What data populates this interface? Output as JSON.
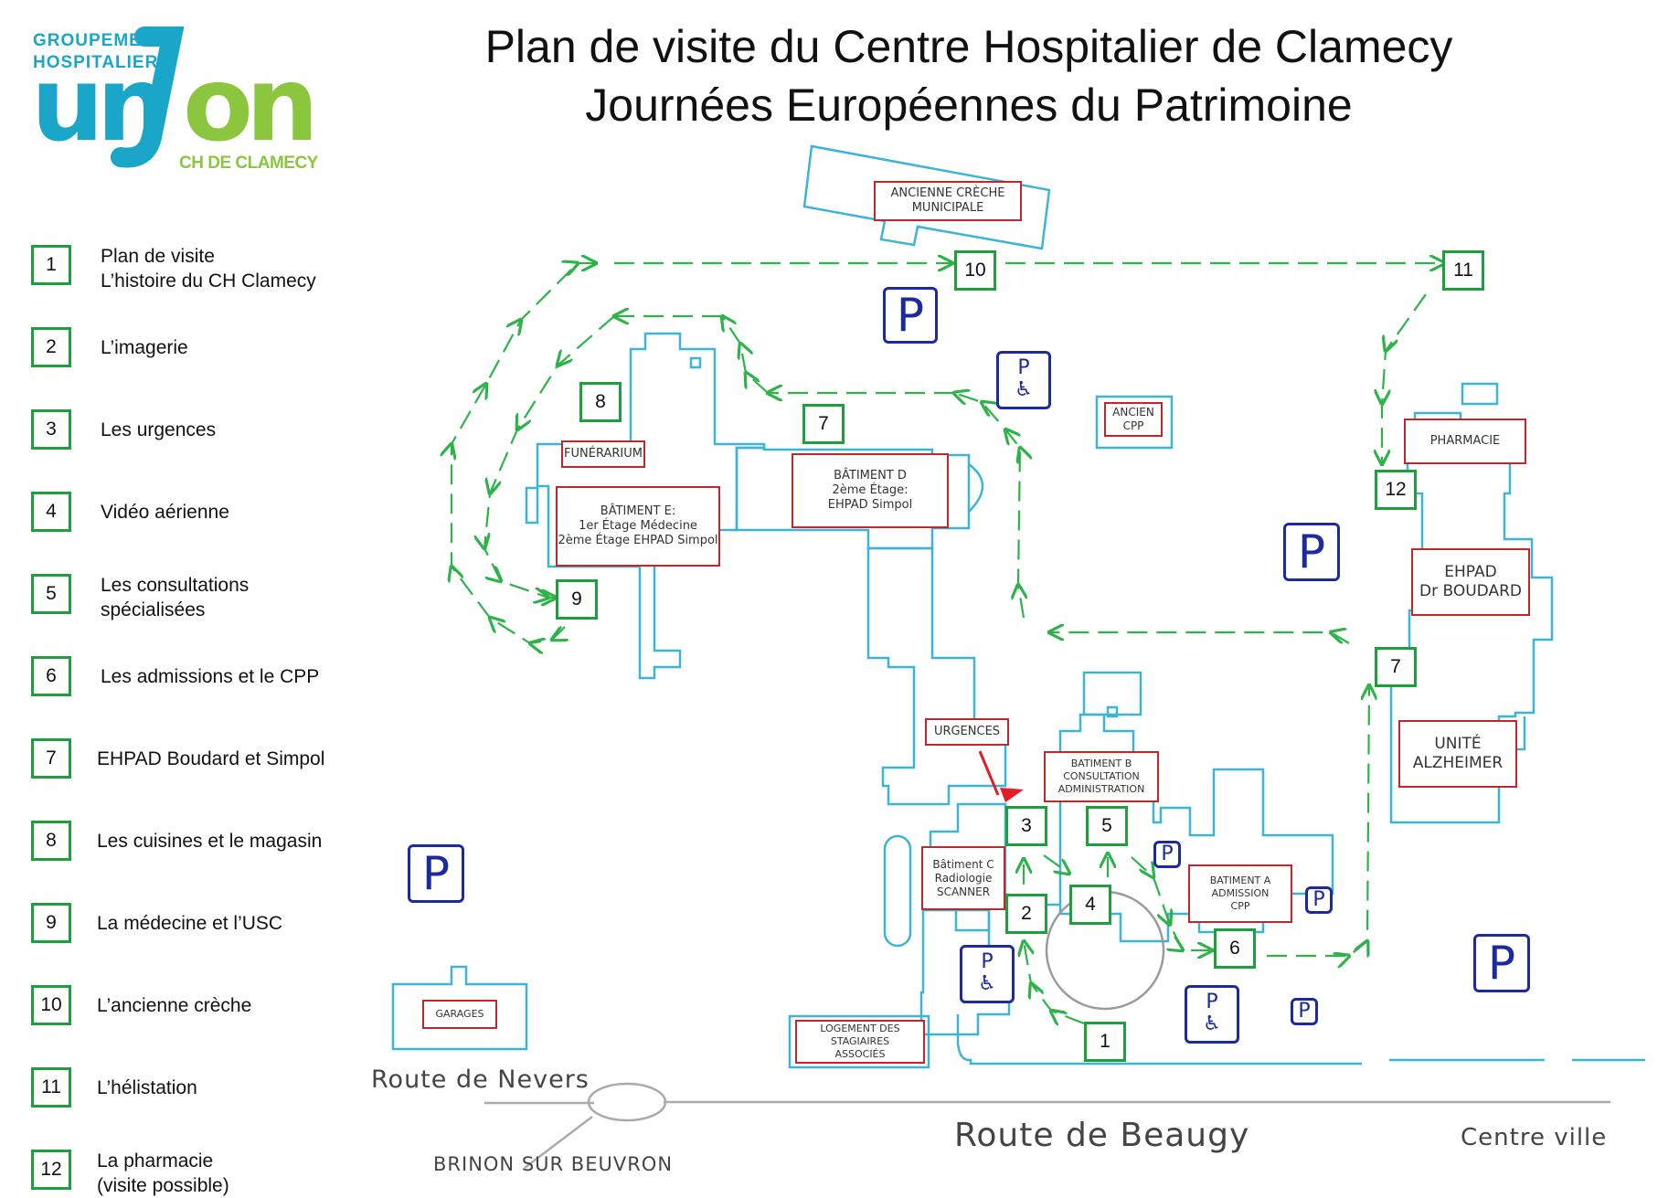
{
  "logo": {
    "line1": "GROUPEMENT",
    "line2": "HOSPITALIER",
    "wordmark": "unyon",
    "subtitle": "CH DE CLAMECY"
  },
  "title": {
    "line1": "Plan de visite du Centre Hospitalier de Clamecy",
    "line2": "Journées Européennes du Patrimoine"
  },
  "legend": [
    {
      "num": "1",
      "text1": "Plan de visite",
      "text2": "L’histoire du CH Clamecy"
    },
    {
      "num": "2",
      "text1": "L’imagerie",
      "text2": ""
    },
    {
      "num": "3",
      "text1": "Les urgences",
      "text2": ""
    },
    {
      "num": "4",
      "text1": "Vidéo aérienne",
      "text2": ""
    },
    {
      "num": "5",
      "text1": "Les consultations",
      "text2": "spécialisées"
    },
    {
      "num": "6",
      "text1": "Les admissions et le CPP",
      "text2": ""
    },
    {
      "num": "7",
      "text1": "EHPAD Boudard et Simpol",
      "text2": ""
    },
    {
      "num": "8",
      "text1": "Les cuisines et le magasin",
      "text2": ""
    },
    {
      "num": "9",
      "text1": "La médecine et l’USC",
      "text2": ""
    },
    {
      "num": "10",
      "text1": "L’ancienne crèche",
      "text2": ""
    },
    {
      "num": "11",
      "text1": "L’hélistation",
      "text2": ""
    },
    {
      "num": "12",
      "text1": "La pharmacie",
      "text2": "(visite possible)"
    }
  ],
  "buildings": {
    "creche": [
      "ANCIENNE CRÈCHE",
      "MUNICIPALE"
    ],
    "funerarium": "FUNÉRARIUM",
    "batiment_e": [
      "BÂTIMENT E:",
      "1er Étage Médecine",
      "2ème Étage EHPAD Simpol"
    ],
    "batiment_d": [
      "BÂTIMENT D",
      "2ème Étage:",
      "EHPAD Simpol"
    ],
    "ancien_cpp": [
      "ANCIEN",
      "CPP"
    ],
    "pharmacie": "PHARMACIE",
    "ehpad": [
      "EHPAD",
      "Dr BOUDARD"
    ],
    "alzheimer": [
      "UNITÉ",
      "ALZHEIMER"
    ],
    "urgences": "URGENCES",
    "batiment_b": [
      "BATIMENT B",
      "CONSULTATION",
      "ADMINISTRATION"
    ],
    "batiment_c": [
      "Bâtiment C",
      "Radiologie",
      "SCANNER"
    ],
    "batiment_a": [
      "BATIMENT A",
      "ADMISSION",
      "CPP"
    ],
    "garages": "GARAGES",
    "logement": [
      "LOGEMENT DES",
      "STAGIAIRES",
      "ASSOCIÉS"
    ]
  },
  "map_markers": [
    "1",
    "2",
    "3",
    "4",
    "5",
    "6",
    "7",
    "7",
    "8",
    "9",
    "10",
    "11",
    "12"
  ],
  "parking_label": "P",
  "roads": {
    "nevers": "Route  de  Nevers",
    "beaugy": "Route  de  Beaugy",
    "centre": "Centre ville",
    "brinon": "BRINON SUR BEUVRON"
  },
  "colors": {
    "building_outline": "#3cb4d8",
    "label_border": "#c0272d",
    "marker_border": "#1f9e3d",
    "path_arrow": "#2db34a",
    "parking": "#1b2a9c",
    "road": "#aaaaaa",
    "logo_blue": "#1aa6c8",
    "logo_green": "#8cc63f",
    "urgences_flag": "#e41e26"
  },
  "icons": {
    "accessible_parking": "wheelchair-icon",
    "urgences_flag": "flag-icon"
  }
}
